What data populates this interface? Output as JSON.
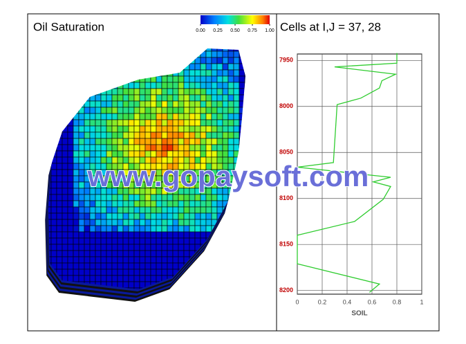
{
  "chart_data": [
    {
      "type": "colorbar",
      "title": "Oil Saturation",
      "ticks": [
        {
          "value": 0,
          "label": "0.00"
        },
        {
          "value": 0.25,
          "label": "0.25"
        },
        {
          "value": 0.5,
          "label": "0.50"
        },
        {
          "value": 0.75,
          "label": "0.75"
        },
        {
          "value": 1,
          "label": "1.00"
        }
      ],
      "lim": [
        0,
        1
      ]
    },
    {
      "type": "line",
      "title": "Cells at I,J = 37, 28",
      "x_label": "SOIL",
      "y": [
        7942,
        7953,
        7957,
        7965,
        7972,
        7980,
        7991,
        7998,
        8061,
        8066,
        8077,
        8082,
        8087,
        8101,
        8125,
        8140,
        8171,
        8193,
        8202
      ],
      "series": [
        {
          "name": "SOIL",
          "color": "#2ecc2e",
          "values": [
            0.8,
            0.8,
            0.3,
            0.79,
            0.68,
            0.66,
            0.51,
            0.32,
            0.29,
            0,
            0.75,
            0.61,
            0.75,
            0.69,
            0.46,
            0,
            0,
            0.66,
            0.58
          ]
        }
      ],
      "xlim": [
        0,
        1
      ],
      "xticks": [
        0,
        0.2,
        0.4,
        0.6,
        0.8,
        1
      ],
      "ylim": [
        7943,
        8204
      ],
      "yticks": [
        7950,
        8000,
        8050,
        8100,
        8150,
        8200
      ],
      "y_inverted": true,
      "grid": true
    }
  ],
  "watermark": "www.gopaysoft.com"
}
